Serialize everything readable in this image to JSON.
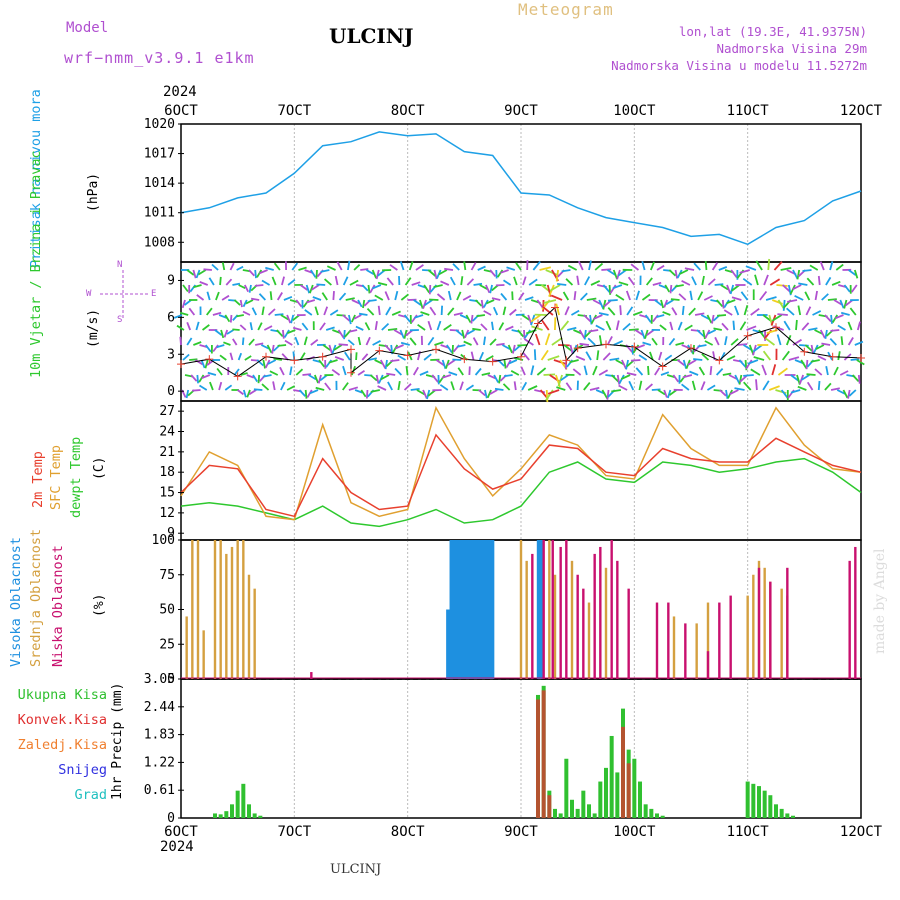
{
  "header": {
    "model_label": "Model",
    "model_name": "wrf−nmm_v3.9.1  e1km",
    "title": "ULCINJ",
    "product": "Meteogram",
    "lonlat": "lon,lat (19.3E, 41.9375N)",
    "height": "Nadmorska Visina 29m",
    "model_height": "Nadmorska Visina u modelu 11.5272m",
    "year_top": "2024",
    "year_bottom": "2024",
    "footer_station": "ULCINJ",
    "credit": "made by Angel"
  },
  "colors": {
    "pressure": "#1ea0e6",
    "temp2m": "#e8402e",
    "sfc_temp": "#e0a030",
    "dewpt": "#2ec82e",
    "high_cloud": "#1e90e0",
    "mid_cloud": "#d4a040",
    "low_cloud": "#c8106e",
    "total_precip": "#30c030",
    "conv_precip": "#e03030",
    "frozen": "#f08030",
    "snow": "#3030e0",
    "grad": "#20c0c0",
    "model_text": "#b050d0"
  },
  "chart_data": [
    {
      "type": "line",
      "ylabel": "Pritisak na nivou mora",
      "unit": "(hPa)",
      "ylim": [
        1006,
        1020
      ],
      "yticks": [
        1008,
        1011,
        1014,
        1017,
        1020
      ],
      "x_ticks": [
        "6OCT",
        "7OCT",
        "8OCT",
        "9OCT",
        "10OCT",
        "11OCT",
        "12OCT"
      ],
      "series": [
        {
          "x": [
            0,
            0.25,
            0.5,
            0.75,
            1,
            1.25,
            1.5,
            1.75,
            2,
            2.25,
            2.5,
            2.75,
            3,
            3.25,
            3.5,
            3.75,
            4,
            4.25,
            4.5,
            4.75,
            5,
            5.25,
            5.5,
            5.75,
            6
          ],
          "values": [
            1011.0,
            1011.5,
            1012.5,
            1013.0,
            1015.0,
            1017.8,
            1018.2,
            1019.2,
            1018.8,
            1019.0,
            1017.2,
            1016.8,
            1013.0,
            1012.8,
            1011.5,
            1010.5,
            1010.0,
            1009.5,
            1008.6,
            1008.8,
            1007.8,
            1009.5,
            1010.2,
            1012.2,
            1013.2
          ]
        }
      ]
    },
    {
      "type": "line",
      "ylabel": "10m Vjetar / Brzina i Pravac",
      "unit": "(m/s)",
      "ylim": [
        -0.8,
        10.5
      ],
      "yticks": [
        0,
        3,
        6,
        9
      ],
      "compass": {
        "w": "W",
        "e": "E",
        "n": "N",
        "s": "S"
      },
      "series": [
        {
          "x": [
            0,
            0.25,
            0.5,
            0.75,
            1,
            1.25,
            1.5,
            1.5,
            1.75,
            2,
            2.25,
            2.5,
            2.75,
            3,
            3.15,
            3.3,
            3.4,
            3.5,
            3.75,
            4,
            4.25,
            4.5,
            4.75,
            5,
            5.25,
            5.5,
            5.75,
            6
          ],
          "values": [
            2.2,
            2.6,
            1.2,
            2.8,
            2.5,
            2.8,
            3.4,
            1.5,
            3.3,
            2.9,
            3.4,
            2.6,
            2.4,
            2.8,
            5.5,
            6.8,
            2.5,
            3.5,
            3.8,
            3.6,
            2.0,
            3.5,
            2.5,
            4.5,
            5.2,
            3.2,
            2.8,
            2.7
          ]
        }
      ]
    },
    {
      "type": "line",
      "ylabels": [
        "2m Temp",
        "SFC Temp",
        "dewpt Temp"
      ],
      "unit": "(C)",
      "ylim": [
        8,
        28.5
      ],
      "yticks": [
        9,
        12,
        15,
        18,
        21,
        24,
        27
      ],
      "x": [
        0,
        0.25,
        0.5,
        0.75,
        1,
        1.25,
        1.5,
        1.75,
        2,
        2.25,
        2.5,
        2.75,
        3,
        3.25,
        3.5,
        3.75,
        4,
        4.25,
        4.5,
        4.75,
        5,
        5.25,
        5.5,
        5.75,
        6
      ],
      "series": [
        {
          "name": "2m Temp",
          "values": [
            15.0,
            19.0,
            18.5,
            12.5,
            11.5,
            20.0,
            15.0,
            12.5,
            13.0,
            23.5,
            18.5,
            15.5,
            17.0,
            22.0,
            21.5,
            18.0,
            17.5,
            21.5,
            20.0,
            19.5,
            19.5,
            23.0,
            21.0,
            19.0,
            18.0
          ]
        },
        {
          "name": "SFC Temp",
          "values": [
            14.5,
            21.0,
            19.0,
            11.5,
            11.0,
            25.0,
            13.5,
            11.5,
            12.5,
            27.5,
            20.0,
            14.5,
            18.5,
            23.5,
            22.0,
            17.5,
            17.0,
            26.5,
            21.5,
            19.0,
            19.0,
            27.5,
            22.0,
            18.5,
            18.0
          ]
        },
        {
          "name": "dewpt Temp",
          "values": [
            13.0,
            13.5,
            13.0,
            12.0,
            11.0,
            13.0,
            10.5,
            10.0,
            11.0,
            12.5,
            10.5,
            11.0,
            13.0,
            18.0,
            19.5,
            17.0,
            16.5,
            19.5,
            19.0,
            18.0,
            18.5,
            19.5,
            20.0,
            18.0,
            15.0
          ]
        }
      ]
    },
    {
      "type": "bar",
      "ylabels": [
        "Visoka Oblacnost",
        "Srednja Oblacnost",
        "Niska Oblacnost"
      ],
      "unit": "(%)",
      "ylim": [
        0,
        100
      ],
      "yticks": [
        0,
        25,
        50,
        75,
        100
      ],
      "series": [
        {
          "name": "Visoka Oblacnost",
          "x": [
            2.35,
            2.38,
            2.41,
            2.44,
            2.47,
            2.5,
            2.53,
            2.56,
            2.59,
            2.62,
            2.65,
            2.68,
            2.71,
            2.74,
            3.15,
            3.18
          ],
          "values": [
            50,
            100,
            100,
            100,
            100,
            100,
            100,
            100,
            100,
            100,
            100,
            100,
            100,
            100,
            100,
            100
          ]
        },
        {
          "name": "Srednja Oblacnost",
          "x": [
            0.05,
            0.1,
            0.15,
            0.2,
            0.3,
            0.35,
            0.4,
            0.45,
            0.5,
            0.55,
            0.6,
            0.65,
            3.0,
            3.05,
            3.25,
            3.3,
            3.45,
            3.6,
            3.75,
            4.35,
            4.55,
            4.65,
            5.0,
            5.05,
            5.1,
            5.15,
            5.2,
            5.3,
            5.35
          ],
          "values": [
            45,
            100,
            100,
            35,
            100,
            100,
            90,
            95,
            100,
            100,
            75,
            65,
            100,
            85,
            100,
            75,
            85,
            55,
            80,
            45,
            40,
            55,
            60,
            75,
            85,
            80,
            70,
            65,
            60
          ]
        },
        {
          "name": "Niska Oblacnost",
          "x": [
            1.15,
            3.1,
            3.2,
            3.28,
            3.35,
            3.4,
            3.5,
            3.55,
            3.65,
            3.7,
            3.8,
            3.85,
            3.95,
            4.2,
            4.3,
            4.45,
            4.65,
            4.75,
            4.85,
            5.1,
            5.2,
            5.35,
            5.9,
            5.95
          ],
          "values": [
            5,
            90,
            100,
            100,
            95,
            100,
            75,
            65,
            90,
            95,
            100,
            85,
            65,
            55,
            55,
            40,
            20,
            55,
            60,
            80,
            70,
            80,
            85,
            95
          ]
        }
      ]
    },
    {
      "type": "bar",
      "ylabels": [
        "Ukupna Kisa",
        "Konvek.Kisa",
        "Zaledj.Kisa",
        "Snijeg",
        "Grad"
      ],
      "unit": "1hr Precip (mm)",
      "ylim": [
        0,
        3.05
      ],
      "yticks": [
        0,
        0.61,
        1.22,
        1.83,
        2.44,
        3.05
      ],
      "x_ticks": [
        "6OCT",
        "7OCT",
        "8OCT",
        "9OCT",
        "10OCT",
        "11OCT",
        "12OCT"
      ],
      "series": [
        {
          "name": "Ukupna Kisa",
          "x": [
            0.3,
            0.35,
            0.4,
            0.45,
            0.5,
            0.55,
            0.6,
            0.65,
            0.7,
            3.15,
            3.2,
            3.25,
            3.3,
            3.35,
            3.4,
            3.45,
            3.5,
            3.55,
            3.6,
            3.65,
            3.7,
            3.75,
            3.8,
            3.85,
            3.9,
            3.95,
            4.0,
            4.05,
            4.1,
            4.15,
            4.2,
            4.25,
            5.0,
            5.05,
            5.1,
            5.15,
            5.2,
            5.25,
            5.3,
            5.35,
            5.4
          ],
          "values": [
            0.1,
            0.08,
            0.15,
            0.3,
            0.6,
            0.75,
            0.3,
            0.1,
            0.05,
            2.7,
            2.9,
            0.6,
            0.2,
            0.1,
            1.3,
            0.4,
            0.2,
            0.6,
            0.3,
            0.1,
            0.8,
            1.1,
            1.8,
            1.0,
            2.4,
            1.5,
            1.3,
            0.8,
            0.3,
            0.2,
            0.1,
            0.05,
            0.8,
            0.75,
            0.7,
            0.6,
            0.5,
            0.3,
            0.2,
            0.1,
            0.05
          ]
        },
        {
          "name": "Konvek.Kisa",
          "x": [
            3.15,
            3.2,
            3.25,
            3.9,
            3.95
          ],
          "values": [
            2.6,
            2.8,
            0.5,
            2.0,
            1.2
          ]
        }
      ]
    }
  ]
}
